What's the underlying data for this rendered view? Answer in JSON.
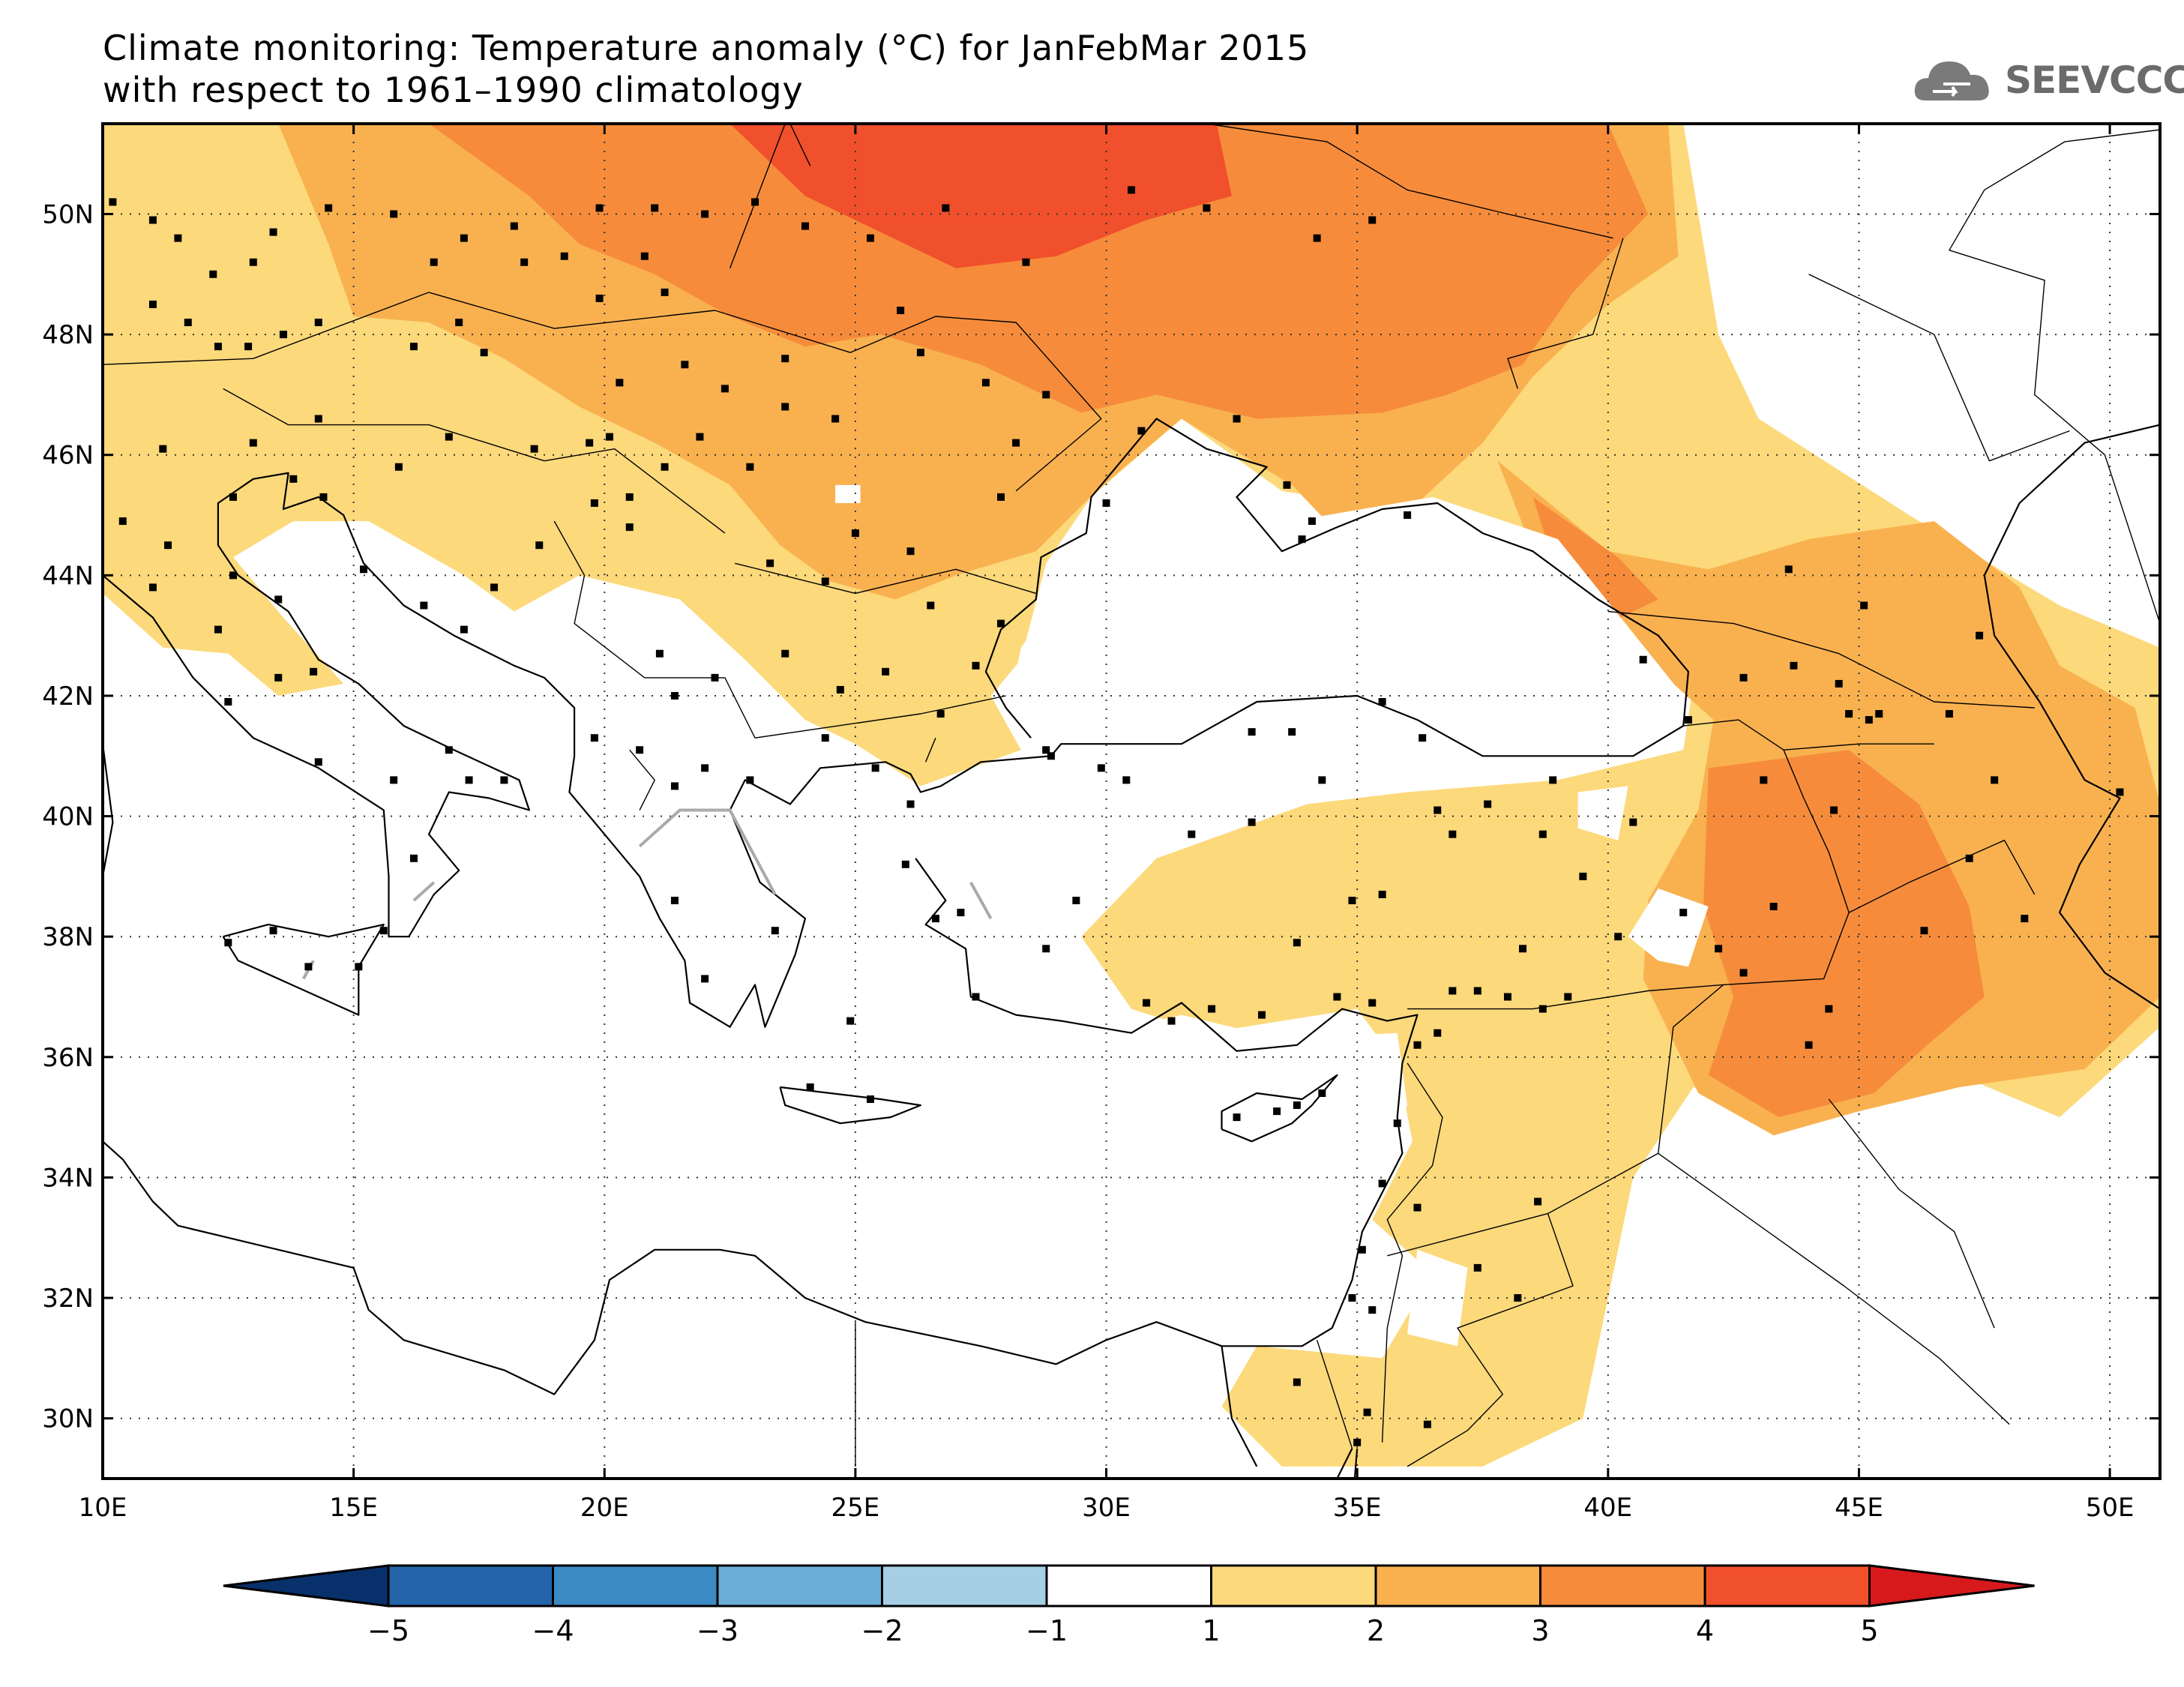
{
  "title": {
    "line1": "Climate monitoring: Temperature anomaly (°C) for JanFebMar 2015",
    "line2": "with respect to 1961–1990 climatology"
  },
  "logo": {
    "text": "SEEVCCC",
    "icon": "cloud-icon"
  },
  "map": {
    "lon_range": [
      10,
      51
    ],
    "lat_range": [
      29,
      51.5
    ],
    "x_ticks": [
      {
        "value": 10,
        "label": "10E"
      },
      {
        "value": 15,
        "label": "15E"
      },
      {
        "value": 20,
        "label": "20E"
      },
      {
        "value": 25,
        "label": "25E"
      },
      {
        "value": 30,
        "label": "30E"
      },
      {
        "value": 35,
        "label": "35E"
      },
      {
        "value": 40,
        "label": "40E"
      },
      {
        "value": 45,
        "label": "45E"
      },
      {
        "value": 50,
        "label": "50E"
      }
    ],
    "y_ticks": [
      {
        "value": 50,
        "label": "50N"
      },
      {
        "value": 48,
        "label": "48N"
      },
      {
        "value": 46,
        "label": "46N"
      },
      {
        "value": 44,
        "label": "44N"
      },
      {
        "value": 42,
        "label": "42N"
      },
      {
        "value": 40,
        "label": "40N"
      },
      {
        "value": 38,
        "label": "38N"
      },
      {
        "value": 36,
        "label": "36N"
      },
      {
        "value": 34,
        "label": "34N"
      },
      {
        "value": 32,
        "label": "32N"
      },
      {
        "value": 30,
        "label": "30N"
      }
    ],
    "grid": "dotted",
    "coastline_color": "#000000",
    "stations": [
      [
        10.2,
        50.2
      ],
      [
        11,
        49.9
      ],
      [
        11.5,
        49.6
      ],
      [
        12.2,
        49
      ],
      [
        11,
        48.5
      ],
      [
        11.7,
        48.2
      ],
      [
        12.3,
        47.8
      ],
      [
        12.9,
        47.8
      ],
      [
        13.6,
        48
      ],
      [
        14.3,
        48.2
      ],
      [
        13,
        49.2
      ],
      [
        13.4,
        49.7
      ],
      [
        14.5,
        50.1
      ],
      [
        15.8,
        50
      ],
      [
        16.6,
        49.2
      ],
      [
        17.2,
        49.6
      ],
      [
        18.2,
        49.8
      ],
      [
        18.4,
        49.2
      ],
      [
        19.2,
        49.3
      ],
      [
        19.9,
        48.6
      ],
      [
        21.2,
        48.7
      ],
      [
        20.8,
        49.3
      ],
      [
        19.9,
        50.1
      ],
      [
        21,
        50.1
      ],
      [
        22,
        50
      ],
      [
        23,
        50.2
      ],
      [
        24,
        49.8
      ],
      [
        25.3,
        49.6
      ],
      [
        26.8,
        50.1
      ],
      [
        28.4,
        49.2
      ],
      [
        30.5,
        50.4
      ],
      [
        32,
        50.1
      ],
      [
        34.2,
        49.6
      ],
      [
        35.3,
        49.9
      ],
      [
        25.9,
        48.4
      ],
      [
        26.3,
        47.7
      ],
      [
        27.6,
        47.2
      ],
      [
        28.8,
        47
      ],
      [
        28.2,
        46.2
      ],
      [
        30.7,
        46.4
      ],
      [
        32.6,
        46.6
      ],
      [
        33.6,
        45.5
      ],
      [
        34.1,
        44.9
      ],
      [
        36,
        45
      ],
      [
        33.9,
        44.6
      ],
      [
        30,
        45.2
      ],
      [
        27.9,
        45.3
      ],
      [
        26.1,
        44.4
      ],
      [
        25,
        44.7
      ],
      [
        24.4,
        43.9
      ],
      [
        23.3,
        44.2
      ],
      [
        23.6,
        42.7
      ],
      [
        25.6,
        42.4
      ],
      [
        27.4,
        42.5
      ],
      [
        27.9,
        43.2
      ],
      [
        26.5,
        43.5
      ],
      [
        22.9,
        45.8
      ],
      [
        21.2,
        45.8
      ],
      [
        20.5,
        45.3
      ],
      [
        20.5,
        44.8
      ],
      [
        19.8,
        45.2
      ],
      [
        18.7,
        44.5
      ],
      [
        17.8,
        43.8
      ],
      [
        17.2,
        43.1
      ],
      [
        16.4,
        43.5
      ],
      [
        15.2,
        44.1
      ],
      [
        14.4,
        45.3
      ],
      [
        13.8,
        45.6
      ],
      [
        15.9,
        45.8
      ],
      [
        16.9,
        46.3
      ],
      [
        18.6,
        46.1
      ],
      [
        19.7,
        46.2
      ],
      [
        20.1,
        46.3
      ],
      [
        20.3,
        47.2
      ],
      [
        21.6,
        47.5
      ],
      [
        22.4,
        47.1
      ],
      [
        23.6,
        47.6
      ],
      [
        24.6,
        46.6
      ],
      [
        23.6,
        46.8
      ],
      [
        21.9,
        46.3
      ],
      [
        17.1,
        48.2
      ],
      [
        17.6,
        47.7
      ],
      [
        16.2,
        47.8
      ],
      [
        14.3,
        46.6
      ],
      [
        13,
        46.2
      ],
      [
        11.2,
        46.1
      ],
      [
        12.6,
        45.3
      ],
      [
        10.4,
        44.9
      ],
      [
        11.3,
        44.5
      ],
      [
        12.6,
        44
      ],
      [
        13.5,
        43.6
      ],
      [
        11,
        43.8
      ],
      [
        12.3,
        43.1
      ],
      [
        13.5,
        42.3
      ],
      [
        14.2,
        42.4
      ],
      [
        12.5,
        41.9
      ],
      [
        14.3,
        40.9
      ],
      [
        16.9,
        41.1
      ],
      [
        18,
        40.6
      ],
      [
        17.3,
        40.6
      ],
      [
        15.8,
        40.6
      ],
      [
        16.2,
        39.3
      ],
      [
        15.6,
        38.1
      ],
      [
        13.4,
        38.1
      ],
      [
        15.1,
        37.5
      ],
      [
        12.5,
        37.9
      ],
      [
        14.1,
        37.5
      ],
      [
        21.1,
        42.7
      ],
      [
        21.4,
        42
      ],
      [
        20.7,
        41.1
      ],
      [
        19.8,
        41.3
      ],
      [
        22.9,
        40.6
      ],
      [
        25.4,
        40.8
      ],
      [
        23.4,
        38.1
      ],
      [
        21.4,
        38.6
      ],
      [
        22,
        37.3
      ],
      [
        24.9,
        36.6
      ],
      [
        25.3,
        35.3
      ],
      [
        24.1,
        35.5
      ],
      [
        26,
        39.2
      ],
      [
        26.6,
        38.3
      ],
      [
        27.1,
        38.4
      ],
      [
        28.9,
        41
      ],
      [
        29.9,
        40.8
      ],
      [
        30.4,
        40.6
      ],
      [
        32.9,
        39.9
      ],
      [
        35.5,
        41.9
      ],
      [
        33.7,
        41.4
      ],
      [
        36.3,
        41.3
      ],
      [
        38.9,
        40.6
      ],
      [
        37.6,
        40.2
      ],
      [
        38.7,
        39.7
      ],
      [
        39.5,
        39
      ],
      [
        40.5,
        39.9
      ],
      [
        43.1,
        40.6
      ],
      [
        44.5,
        40.1
      ],
      [
        45.4,
        41.7
      ],
      [
        44.8,
        41.7
      ],
      [
        42.7,
        42.3
      ],
      [
        41.6,
        41.6
      ],
      [
        33.8,
        37.9
      ],
      [
        34.9,
        38.6
      ],
      [
        35.5,
        38.7
      ],
      [
        36.9,
        39.7
      ],
      [
        36.9,
        37.1
      ],
      [
        37.4,
        37.1
      ],
      [
        38.3,
        37.8
      ],
      [
        39.2,
        37
      ],
      [
        40.2,
        38
      ],
      [
        41.5,
        38.4
      ],
      [
        43.3,
        38.5
      ],
      [
        42.2,
        37.8
      ],
      [
        42.7,
        37.4
      ],
      [
        44,
        36.2
      ],
      [
        44.4,
        36.8
      ],
      [
        46.3,
        38.1
      ],
      [
        47.2,
        39.3
      ],
      [
        48.3,
        38.3
      ],
      [
        50.2,
        40.4
      ],
      [
        47.7,
        40.6
      ],
      [
        31.3,
        36.6
      ],
      [
        30.8,
        36.9
      ],
      [
        32.1,
        36.8
      ],
      [
        33.1,
        36.7
      ],
      [
        34.6,
        37
      ],
      [
        35.3,
        36.9
      ],
      [
        36.2,
        36.2
      ],
      [
        38.7,
        36.8
      ],
      [
        37.4,
        32.5
      ],
      [
        36.2,
        33.5
      ],
      [
        35.5,
        33.9
      ],
      [
        35.1,
        32.8
      ],
      [
        34.9,
        32
      ],
      [
        35.3,
        31.8
      ],
      [
        35,
        29.6
      ],
      [
        35.2,
        30.1
      ],
      [
        36.4,
        29.9
      ],
      [
        33.8,
        30.6
      ],
      [
        33.8,
        35.2
      ],
      [
        33.4,
        35.1
      ],
      [
        32.6,
        35
      ],
      [
        34.3,
        35.4
      ],
      [
        38.2,
        32
      ],
      [
        38.6,
        33.6
      ],
      [
        38,
        37
      ],
      [
        36.6,
        36.4
      ],
      [
        35.8,
        34.9
      ],
      [
        40.7,
        42.6
      ],
      [
        46.8,
        41.7
      ],
      [
        45.1,
        43.5
      ],
      [
        44.6,
        42.2
      ],
      [
        43.7,
        42.5
      ],
      [
        47.4,
        43
      ],
      [
        43.6,
        44.1
      ],
      [
        45.2,
        41.6
      ],
      [
        36.6,
        40.1
      ],
      [
        34.3,
        40.6
      ],
      [
        32.9,
        41.4
      ],
      [
        31.7,
        39.7
      ],
      [
        29.4,
        38.6
      ],
      [
        28.8,
        37.8
      ],
      [
        27.4,
        37
      ],
      [
        26.1,
        40.2
      ],
      [
        26.7,
        41.7
      ],
      [
        28.8,
        41.1
      ],
      [
        24.4,
        41.3
      ],
      [
        24.7,
        42.1
      ],
      [
        22.2,
        42.3
      ],
      [
        22,
        40.8
      ],
      [
        21.4,
        40.5
      ]
    ],
    "anomaly_regions": [
      {
        "level": 1,
        "color": "#fcd97b"
      },
      {
        "level": 2,
        "color": "#f9b150"
      },
      {
        "level": 3,
        "color": "#f68c3b"
      },
      {
        "level": 4,
        "color": "#f0502b"
      }
    ]
  },
  "colorbar": {
    "colors": [
      "#08306b",
      "#2464a8",
      "#3b8ac4",
      "#6baed6",
      "#a6cfe5",
      "#ffffff",
      "#fcd97b",
      "#f9b150",
      "#f68c3b",
      "#f0502b",
      "#d7191c"
    ],
    "labels": [
      "−5",
      "−4",
      "−3",
      "−2",
      "−1",
      "1",
      "2",
      "3",
      "4",
      "5"
    ]
  }
}
